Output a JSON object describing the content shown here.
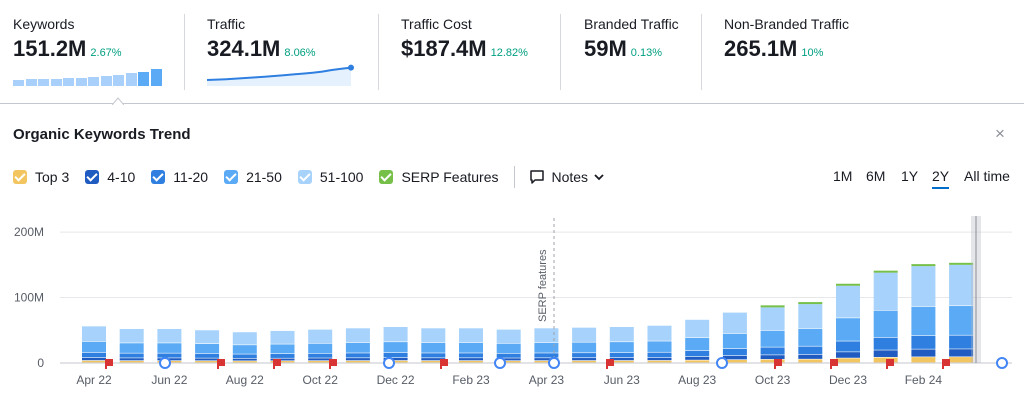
{
  "metrics": [
    {
      "label": "Keywords",
      "value": "151.2M",
      "change": "2.67%"
    },
    {
      "label": "Traffic",
      "value": "324.1M",
      "change": "8.06%"
    },
    {
      "label": "Traffic Cost",
      "value": "$187.4M",
      "change": "12.82%"
    },
    {
      "label": "Branded Traffic",
      "value": "59M",
      "change": "0.13%"
    },
    {
      "label": "Non-Branded Traffic",
      "value": "265.1M",
      "change": "10%"
    }
  ],
  "keyword_sparkline": [
    0.3,
    0.33,
    0.35,
    0.37,
    0.39,
    0.41,
    0.44,
    0.48,
    0.55,
    0.63,
    0.72,
    0.85
  ],
  "traffic_sparkline": [
    0.2,
    0.22,
    0.24,
    0.27,
    0.3,
    0.33,
    0.36,
    0.4,
    0.44,
    0.48,
    0.52,
    0.56,
    0.62,
    0.7,
    0.76,
    0.82
  ],
  "panel": {
    "title": "Organic Keywords Trend",
    "close": "×"
  },
  "legend": [
    {
      "label": "Top 3",
      "color": "#f2c560"
    },
    {
      "label": "4-10",
      "color": "#1f5bc0"
    },
    {
      "label": "11-20",
      "color": "#2f7fe0"
    },
    {
      "label": "21-50",
      "color": "#5aaaf5"
    },
    {
      "label": "51-100",
      "color": "#a6d2fb"
    },
    {
      "label": "SERP Features",
      "color": "#76c04a"
    }
  ],
  "notes_label": "Notes",
  "periods": [
    "1M",
    "6M",
    "1Y",
    "2Y",
    "All time"
  ],
  "active_period": "2Y",
  "chart_data": {
    "type": "bar",
    "stacked": true,
    "y_unit": "M",
    "ylim": [
      0,
      220
    ],
    "yticks": [
      0,
      100,
      200
    ],
    "ytick_labels": [
      "0",
      "100M",
      "200M"
    ],
    "xtick_labels": [
      "Apr 22",
      "Jun 22",
      "Aug 22",
      "Oct 22",
      "Dec 22",
      "Feb 23",
      "Apr 23",
      "Jun 23",
      "Aug 23",
      "Oct 23",
      "Dec 23",
      "Feb 24"
    ],
    "annotation": "SERP features",
    "totals": [
      56,
      52,
      52,
      50,
      47,
      49,
      51,
      53,
      55,
      53,
      53,
      51,
      53,
      54,
      55,
      57,
      66,
      77,
      85,
      90,
      118,
      138,
      148,
      150
    ],
    "series": [
      {
        "name": "Top 3",
        "share": 0.06
      },
      {
        "name": "4-10",
        "share": 0.08
      },
      {
        "name": "11-20",
        "share": 0.14
      },
      {
        "name": "21-50",
        "share": 0.3
      },
      {
        "name": "51-100",
        "share": 0.42
      }
    ]
  }
}
